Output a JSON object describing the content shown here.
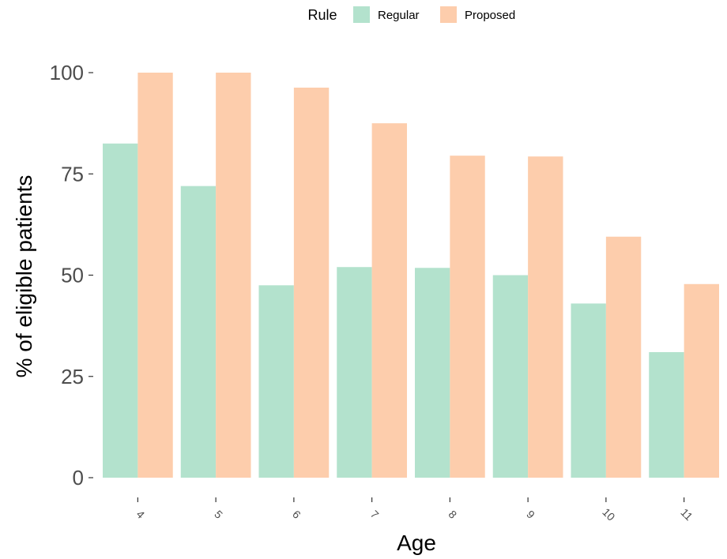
{
  "chart_data": {
    "type": "bar",
    "xlabel": "Age",
    "ylabel": "% of eligible patients",
    "categories": [
      "4",
      "5",
      "6",
      "7",
      "8",
      "9",
      "10",
      "11"
    ],
    "series": [
      {
        "name": "Regular",
        "color": "#b3e2cd",
        "values": [
          82.5,
          72,
          47.5,
          52,
          51.8,
          50,
          43,
          31
        ]
      },
      {
        "name": "Proposed",
        "color": "#fdcdac",
        "values": [
          100,
          100,
          96.3,
          87.5,
          79.5,
          79.3,
          59.5,
          47.8
        ]
      }
    ],
    "ylim": [
      0,
      100
    ],
    "yticks": [
      0,
      25,
      50,
      75,
      100
    ],
    "grid": false,
    "legend": {
      "title": "Rule",
      "position": "top"
    }
  }
}
